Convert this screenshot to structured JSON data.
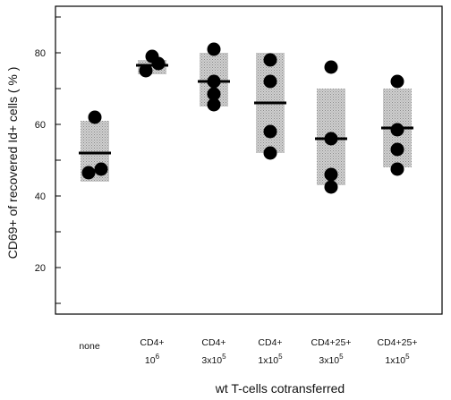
{
  "chart_data": {
    "type": "scatter",
    "ylabel": "CD69+ of recovered Id+ cells ( % )",
    "xlabel": "wt T-cells cotransferred",
    "ylim": [
      7,
      93
    ],
    "yticks": [
      20,
      40,
      60,
      80
    ],
    "ytick_labels": [
      "20",
      "40",
      "60",
      "80"
    ],
    "grid": false,
    "categories": [
      {
        "line1": "none",
        "base2": "",
        "exp2": ""
      },
      {
        "line1": "CD4+",
        "base2": "10",
        "exp2": "6"
      },
      {
        "line1": "CD4+",
        "base2": "3x10",
        "exp2": "5"
      },
      {
        "line1": "CD4+",
        "base2": "1x10",
        "exp2": "5"
      },
      {
        "line1": "CD4+25+",
        "base2": "3x10",
        "exp2": "5"
      },
      {
        "line1": "CD4+25+",
        "base2": "1x10",
        "exp2": "5"
      }
    ],
    "groups": [
      {
        "points": [
          62,
          47.5,
          46.5
        ],
        "mean": 52,
        "range": [
          44,
          61
        ]
      },
      {
        "points": [
          79,
          77,
          75
        ],
        "mean": 76.5,
        "range": [
          74,
          78
        ]
      },
      {
        "points": [
          81,
          72,
          68.5,
          65.5
        ],
        "mean": 72,
        "range": [
          65,
          80
        ]
      },
      {
        "points": [
          78,
          72,
          58,
          52
        ],
        "mean": 66,
        "range": [
          52,
          80
        ]
      },
      {
        "points": [
          76,
          56,
          46,
          42.5
        ],
        "mean": 56,
        "range": [
          43,
          70
        ]
      },
      {
        "points": [
          72,
          58.5,
          53,
          47.5
        ],
        "mean": 59,
        "range": [
          48,
          70
        ]
      }
    ]
  }
}
